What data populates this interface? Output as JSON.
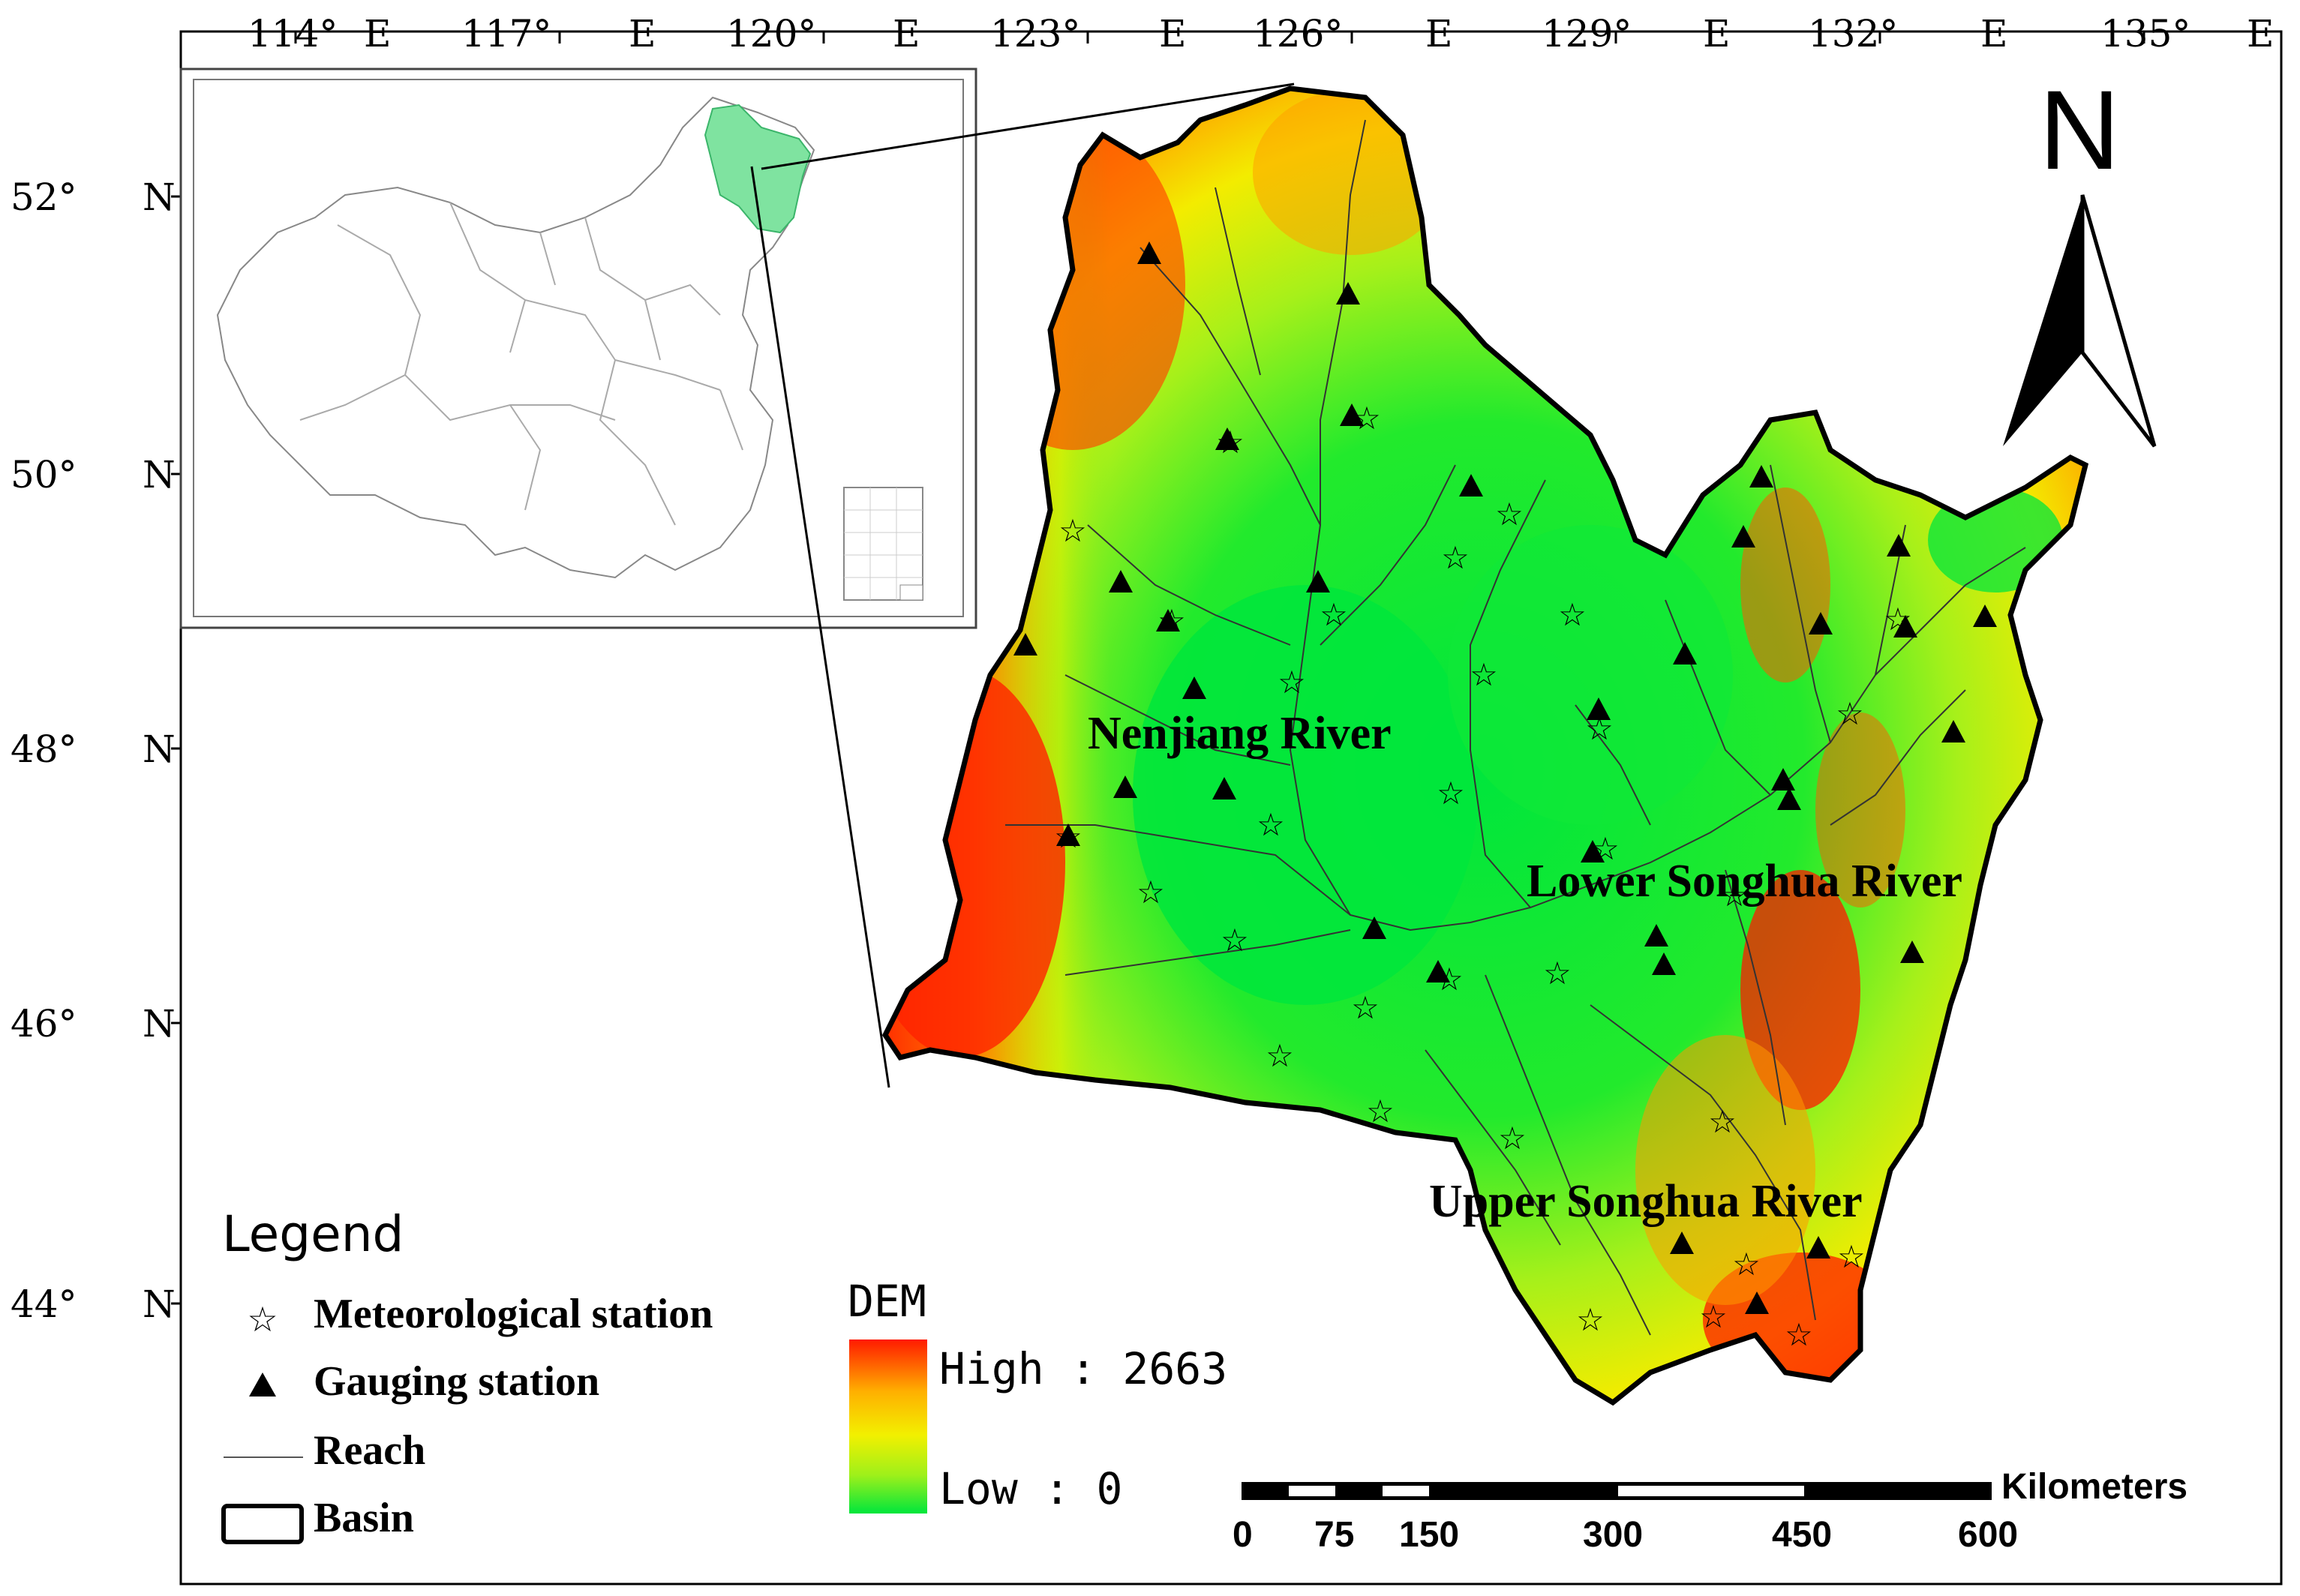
{
  "top_ticks": [
    {
      "deg": "114°",
      "hem": "E"
    },
    {
      "deg": "117°",
      "hem": "E"
    },
    {
      "deg": "120°",
      "hem": "E"
    },
    {
      "deg": "123°",
      "hem": "E"
    },
    {
      "deg": "126°",
      "hem": "E"
    },
    {
      "deg": "129°",
      "hem": "E"
    },
    {
      "deg": "132°",
      "hem": "E"
    },
    {
      "deg": "135°",
      "hem": "E"
    }
  ],
  "left_ticks": [
    {
      "deg": "52°",
      "hem": "N"
    },
    {
      "deg": "50°",
      "hem": "N"
    },
    {
      "deg": "48°",
      "hem": "N"
    },
    {
      "deg": "46°",
      "hem": "N"
    },
    {
      "deg": "44°",
      "hem": "N"
    }
  ],
  "north_label": "N",
  "river_labels": {
    "nenjiang": "Nenjiang River",
    "lower": "Lower Songhua River",
    "upper": "Upper Songhua River"
  },
  "legend": {
    "title": "Legend",
    "items": [
      {
        "symbol": "star",
        "label": "Meteorological station"
      },
      {
        "symbol": "triangle",
        "label": "Gauging station"
      },
      {
        "symbol": "line",
        "label": "Reach"
      },
      {
        "symbol": "box",
        "label": "Basin"
      }
    ]
  },
  "dem": {
    "title": "DEM",
    "high": "High : 2663",
    "low": "Low : 0",
    "colors": [
      "#ff1a00",
      "#ffb000",
      "#f2f000",
      "#9ef01a",
      "#00e63c"
    ]
  },
  "scale": {
    "unit": "Kilometers",
    "labels": [
      "0",
      "75",
      "150",
      "300",
      "450",
      "600"
    ]
  },
  "colors": {
    "inset_highlight": "#7fe3a0",
    "map_frame": "#000000"
  }
}
